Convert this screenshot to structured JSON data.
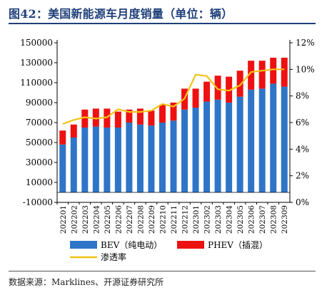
{
  "title": "图42：美国新能源车月度销量（单位：辆）",
  "source": "数据来源：Marklines、开源证券研究所",
  "colors": {
    "bev": "#2e75c8",
    "phev": "#ee1111",
    "rate": "#f2c316",
    "title": "#1f3f7a"
  },
  "chart_data": {
    "type": "bar",
    "stacked": true,
    "categories": [
      "202201",
      "202202",
      "202203",
      "202204",
      "202205",
      "202206",
      "202207",
      "202208",
      "202209",
      "202210",
      "202211",
      "202212",
      "202301",
      "202302",
      "202303",
      "202304",
      "202305",
      "202306",
      "202307",
      "202308",
      "202309"
    ],
    "series": [
      {
        "name": "BEV（纯电动）",
        "type": "bar",
        "axis": "left",
        "values": [
          48000,
          55000,
          65000,
          66000,
          65000,
          65000,
          70000,
          68000,
          67000,
          70000,
          72000,
          83000,
          85000,
          91000,
          93000,
          90000,
          96000,
          103000,
          104000,
          109000,
          106000
        ]
      },
      {
        "name": "PHEV（插混）",
        "type": "bar",
        "axis": "left",
        "values": [
          14000,
          13000,
          18000,
          18000,
          19000,
          16000,
          13000,
          16000,
          15000,
          18000,
          18000,
          21000,
          19000,
          20000,
          24000,
          26000,
          26000,
          29000,
          28000,
          26000,
          29000
        ]
      },
      {
        "name": "渗透率",
        "type": "line",
        "axis": "right",
        "values": [
          5.9,
          6.2,
          6.4,
          6.3,
          6.4,
          7.0,
          6.8,
          6.8,
          6.9,
          7.4,
          7.2,
          7.8,
          9.6,
          9.5,
          8.5,
          8.4,
          8.8,
          9.8,
          9.9,
          10.0,
          10.0
        ]
      }
    ],
    "y_left": {
      "min": -10000,
      "max": 150000,
      "step": 20000,
      "ticks": [
        "-10000",
        "10000",
        "30000",
        "50000",
        "70000",
        "90000",
        "110000",
        "130000",
        "150000"
      ]
    },
    "y_right": {
      "min": 0,
      "max": 12,
      "step": 2,
      "ticks": [
        "0%",
        "2%",
        "4%",
        "6%",
        "8%",
        "10%",
        "12%"
      ]
    },
    "legend": {
      "placement": "bottom"
    },
    "grid": false
  }
}
